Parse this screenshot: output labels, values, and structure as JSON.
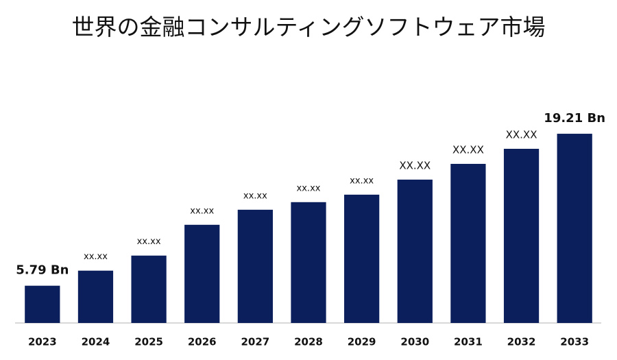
{
  "chart_data": {
    "type": "bar",
    "title": "世界の金融コンサルティングソフトウェア市場",
    "categories": [
      "2023",
      "2024",
      "2025",
      "2026",
      "2027",
      "2028",
      "2029",
      "2030",
      "2031",
      "2032",
      "2033"
    ],
    "values": [
      5.79,
      7.12,
      8.45,
      11.17,
      12.5,
      13.17,
      13.83,
      15.16,
      16.55,
      17.88,
      19.21
    ],
    "value_labels": [
      "5.79 Bn",
      "xx.xx",
      "xx.xx",
      "xx.xx",
      "xx.xx",
      "xx.xx",
      "xx.xx",
      "XX.XX",
      "XX.XX",
      "XX.XX",
      "19.21 Bn"
    ],
    "color": "#0b1f5c",
    "ylim": [
      2.5,
      20
    ]
  }
}
